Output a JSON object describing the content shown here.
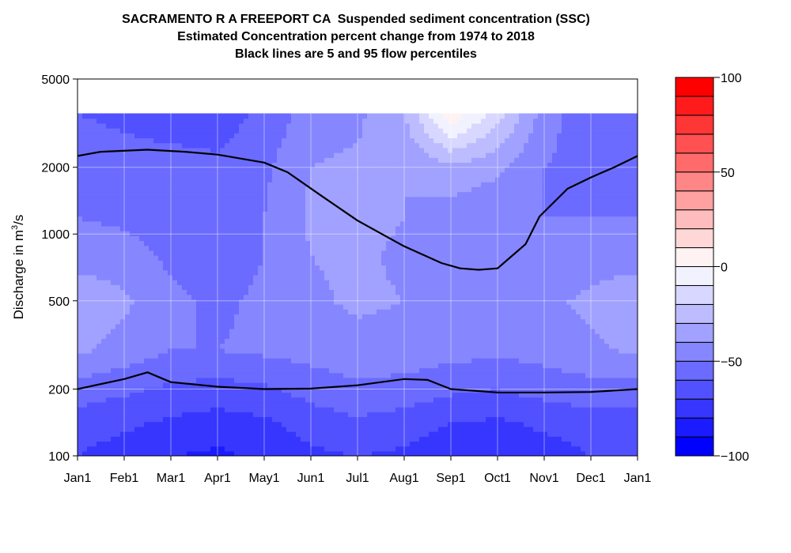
{
  "chart_data": {
    "type": "heatmap",
    "title_lines": [
      "SACRAMENTO R A FREEPORT CA  Suspended sediment concentration (SSC)",
      "Estimated Concentration percent change from 1974 to 2018",
      "Black lines are 5 and 95 flow percentiles"
    ],
    "ylabel": "Discharge in m",
    "ylabel_sup": "3",
    "ylabel_suffix": "/s",
    "y_scale": "log",
    "ylim": [
      100,
      5000
    ],
    "y_ticks": [
      100,
      200,
      500,
      1000,
      2000,
      5000
    ],
    "x_ticks": [
      "Jan1",
      "Feb1",
      "Mar1",
      "Apr1",
      "May1",
      "Jun1",
      "Jul1",
      "Aug1",
      "Sep1",
      "Oct1",
      "Nov1",
      "Dec1",
      "Jan1"
    ],
    "x_range_months": [
      0,
      12
    ],
    "grid": true,
    "data_top_discharge": 3500,
    "colorbar": {
      "range": [
        -100,
        100
      ],
      "ticks": [
        -100,
        -50,
        0,
        50,
        100
      ],
      "levels": [
        -100,
        -90,
        -80,
        -70,
        -60,
        -50,
        -40,
        -30,
        -20,
        -10,
        0,
        10,
        20,
        30,
        40,
        50,
        60,
        70,
        80,
        90,
        100
      ]
    },
    "grid_values": {
      "months": [
        0,
        1,
        2,
        3,
        4,
        5,
        6,
        7,
        8,
        9,
        10,
        11,
        12
      ],
      "discharge": [
        100,
        140,
        200,
        300,
        500,
        800,
        1200,
        2000,
        3500
      ],
      "values": [
        [
          -70,
          -75,
          -80,
          -82,
          -78,
          -72,
          -70,
          -72,
          -78,
          -80,
          -75,
          -70,
          -70
        ],
        [
          -65,
          -68,
          -72,
          -75,
          -72,
          -66,
          -62,
          -65,
          -70,
          -72,
          -68,
          -65,
          -65
        ],
        [
          -55,
          -58,
          -62,
          -64,
          -62,
          -56,
          -52,
          -54,
          -58,
          -60,
          -56,
          -54,
          -55
        ],
        [
          -38,
          -44,
          -50,
          -50,
          -48,
          -46,
          -44,
          -44,
          -46,
          -48,
          -46,
          -42,
          -38
        ],
        [
          -32,
          -38,
          -48,
          -52,
          -48,
          -42,
          -38,
          -40,
          -42,
          -44,
          -42,
          -38,
          -32
        ],
        [
          -45,
          -46,
          -52,
          -55,
          -50,
          -40,
          -38,
          -42,
          -48,
          -48,
          -48,
          -44,
          -45
        ],
        [
          -50,
          -52,
          -55,
          -56,
          -50,
          -38,
          -36,
          -40,
          -46,
          -48,
          -50,
          -50,
          -50
        ],
        [
          -55,
          -56,
          -56,
          -58,
          -52,
          -40,
          -38,
          -40,
          -32,
          -38,
          -50,
          -54,
          -55
        ],
        [
          -60,
          -62,
          -65,
          -65,
          -58,
          -45,
          -42,
          -30,
          8,
          -15,
          -45,
          -58,
          -60
        ]
      ]
    },
    "series": [
      {
        "name": "95",
        "x": [
          0,
          0.5,
          1.5,
          2.3,
          3.0,
          4.0,
          4.5,
          5.2,
          6.0,
          7.0,
          7.8,
          8.2,
          8.6,
          9.0,
          9.6,
          9.9,
          10.5,
          11.0,
          11.5,
          12.0
        ],
        "y": [
          2250,
          2350,
          2400,
          2350,
          2280,
          2100,
          1900,
          1500,
          1150,
          880,
          740,
          700,
          690,
          700,
          900,
          1200,
          1600,
          1800,
          2000,
          2250
        ]
      },
      {
        "name": "5",
        "x": [
          0,
          1.0,
          1.5,
          2.0,
          3.0,
          4.0,
          5.0,
          6.0,
          7.0,
          7.5,
          8.0,
          9.0,
          10.0,
          11.0,
          12.0
        ],
        "y": [
          200,
          222,
          238,
          215,
          205,
          200,
          201,
          208,
          222,
          220,
          200,
          193,
          193,
          194,
          200
        ]
      }
    ]
  }
}
